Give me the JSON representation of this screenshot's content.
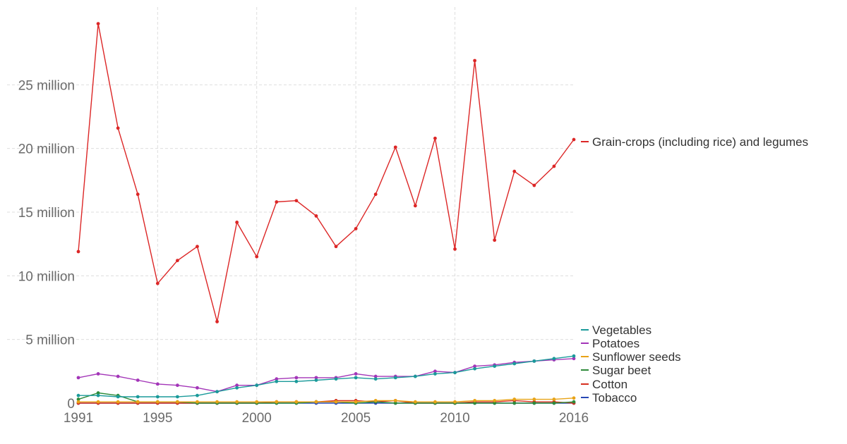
{
  "chart_data": {
    "type": "line",
    "x": [
      1991,
      1992,
      1993,
      1994,
      1995,
      1996,
      1997,
      1998,
      1999,
      2000,
      2001,
      2002,
      2003,
      2004,
      2005,
      2006,
      2007,
      2008,
      2009,
      2010,
      2011,
      2012,
      2013,
      2014,
      2015,
      2016
    ],
    "xlim": [
      1991,
      2016
    ],
    "ylim": [
      0,
      30000000
    ],
    "xticks": [
      1991,
      1995,
      2000,
      2005,
      2010,
      2016
    ],
    "xtick_labels": [
      "1991",
      "1995",
      "2000",
      "2005",
      "2010",
      "2016"
    ],
    "yticks": [
      0,
      5000000,
      10000000,
      15000000,
      20000000,
      25000000
    ],
    "ytick_labels": [
      "0",
      "5 million",
      "10 million",
      "15 million",
      "20 million",
      "25 million"
    ],
    "grid": true,
    "legend_position": "right",
    "series": [
      {
        "name": "Grain-crops (including rice) and legumes",
        "color": "#dc2626",
        "values": [
          11900000,
          29800000,
          21600000,
          16400000,
          9400000,
          11200000,
          12300000,
          6400000,
          14200000,
          11500000,
          15800000,
          15900000,
          14700000,
          12300000,
          13700000,
          16400000,
          20100000,
          15500000,
          20800000,
          12100000,
          26900000,
          12800000,
          18200000,
          17100000,
          18600000,
          20700000
        ]
      },
      {
        "name": "Vegetables",
        "color": "#1a9a9a",
        "values": [
          600000,
          600000,
          500000,
          500000,
          500000,
          500000,
          600000,
          900000,
          1200000,
          1400000,
          1700000,
          1700000,
          1800000,
          1900000,
          2000000,
          1900000,
          2000000,
          2100000,
          2300000,
          2400000,
          2700000,
          2900000,
          3100000,
          3300000,
          3500000,
          3700000
        ]
      },
      {
        "name": "Potatoes",
        "color": "#a335b8",
        "values": [
          2000000,
          2300000,
          2100000,
          1800000,
          1500000,
          1400000,
          1200000,
          900000,
          1400000,
          1400000,
          1900000,
          2000000,
          2000000,
          2000000,
          2300000,
          2100000,
          2100000,
          2100000,
          2500000,
          2400000,
          2900000,
          3000000,
          3200000,
          3300000,
          3400000,
          3500000
        ]
      },
      {
        "name": "Sunflower seeds",
        "color": "#e8a317",
        "values": [
          100000,
          100000,
          100000,
          100000,
          100000,
          100000,
          100000,
          100000,
          100000,
          100000,
          100000,
          100000,
          100000,
          100000,
          100000,
          200000,
          200000,
          100000,
          100000,
          100000,
          200000,
          200000,
          300000,
          300000,
          300000,
          400000
        ]
      },
      {
        "name": "Sugar beet",
        "color": "#2e8b3a",
        "values": [
          300000,
          800000,
          600000,
          100000,
          100000,
          100000,
          0,
          0,
          0,
          0,
          0,
          0,
          100000,
          100000,
          0,
          100000,
          0,
          0,
          0,
          0,
          0,
          0,
          0,
          0,
          0,
          100000
        ]
      },
      {
        "name": "Cotton",
        "color": "#d62f1f",
        "values": [
          0,
          0,
          0,
          0,
          0,
          0,
          0,
          0,
          0,
          0,
          100000,
          100000,
          100000,
          200000,
          200000,
          100000,
          200000,
          0,
          0,
          0,
          100000,
          100000,
          200000,
          100000,
          100000,
          0
        ]
      },
      {
        "name": "Tobacco",
        "color": "#2747b5",
        "values": [
          0,
          0,
          0,
          0,
          0,
          0,
          0,
          0,
          0,
          0,
          0,
          0,
          0,
          0,
          0,
          0,
          0,
          0,
          0,
          0,
          0,
          0,
          0,
          0,
          0,
          0
        ]
      }
    ]
  }
}
